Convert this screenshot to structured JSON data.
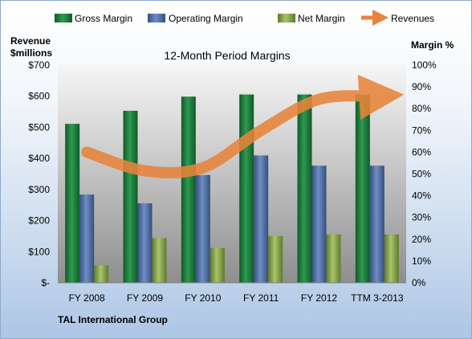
{
  "chart_data": {
    "type": "bar",
    "title": "12-Month Period Margins",
    "footer": "TAL International Group",
    "left_axis_label": [
      "Revenue",
      "$millions"
    ],
    "right_axis_label": "Margin %",
    "categories": [
      "FY 2008",
      "FY 2009",
      "FY 2010",
      "FY 2011",
      "FY 2012",
      "TTM 3-2013"
    ],
    "left_ticks": [
      "$-",
      "$100",
      "$200",
      "$300",
      "$400",
      "$500",
      "$600",
      "$700"
    ],
    "right_ticks": [
      "0%",
      "10%",
      "20%",
      "30%",
      "40%",
      "50%",
      "60%",
      "70%",
      "80%",
      "90%",
      "100%"
    ],
    "ylim_left": [
      0,
      700
    ],
    "ylim_right": [
      0,
      100
    ],
    "series": [
      {
        "name": "Gross Margin",
        "color": "#1f7a3a",
        "values": [
          73,
          79,
          85.5,
          86.5,
          86.5,
          86.5
        ]
      },
      {
        "name": "Operating Margin",
        "color": "#4f6fa8",
        "values": [
          40.5,
          36.5,
          49.5,
          58.5,
          53.8,
          53.8
        ]
      },
      {
        "name": "Net Margin",
        "color": "#8aa84a",
        "values": [
          8,
          20.5,
          16,
          21.5,
          22.2,
          22.2
        ]
      }
    ],
    "revenues": {
      "name": "Revenues",
      "color": "#e8843a",
      "values": [
        420,
        360,
        370,
        490,
        590,
        600
      ]
    },
    "legend": "top",
    "grid": false
  }
}
